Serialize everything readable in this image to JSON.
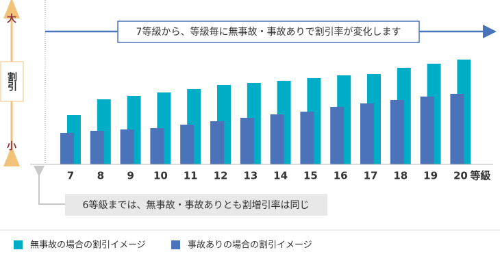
{
  "chart_data": {
    "type": "bar",
    "categories": [
      "7",
      "8",
      "9",
      "10",
      "11",
      "12",
      "13",
      "14",
      "15",
      "16",
      "17",
      "18",
      "19",
      "20"
    ],
    "x_unit": "等級",
    "series": [
      {
        "name": "無事故の場合の割引イメージ",
        "color": "#00adc6",
        "values": [
          72,
          95,
          100,
          105,
          110,
          116,
          119,
          122,
          126,
          130,
          132,
          141,
          147,
          153
        ]
      },
      {
        "name": "事故ありの場合の割引イメージ",
        "color": "#4a73b9",
        "values": [
          46,
          49,
          51,
          53,
          58,
          63,
          68,
          73,
          77,
          84,
          89,
          94,
          99,
          103
        ]
      }
    ],
    "ylim": [
      0,
      220
    ],
    "y_axis": {
      "high": "大",
      "label": "割引",
      "low": "小"
    },
    "annotations": {
      "top": "7等級から、等級毎に無事故・事故ありで割引率が変化します",
      "note": "6等級までは、無事故・事故ありとも割増引率は同じ"
    }
  }
}
